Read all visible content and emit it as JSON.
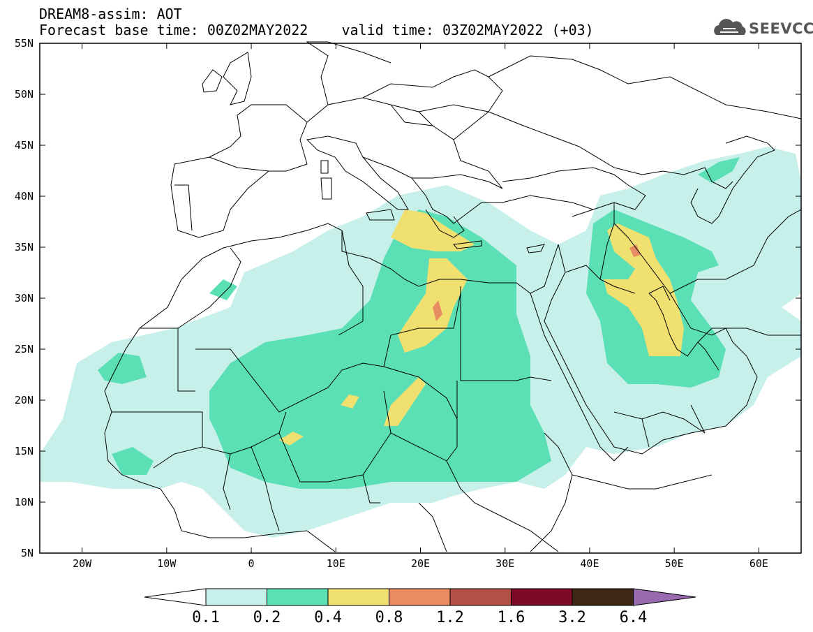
{
  "title": {
    "line1": "DREAM8-assim: AOT",
    "line2": "Forecast base time: 00Z02MAY2022    valid time: 03Z02MAY2022 (+03)"
  },
  "logo": {
    "text": "SEEVCCC",
    "icon": "cloud-icon"
  },
  "map": {
    "lon_range": [
      -25,
      65
    ],
    "lat_range": [
      5,
      55
    ],
    "lat_labels": [
      "55N",
      "50N",
      "45N",
      "40N",
      "35N",
      "30N",
      "25N",
      "20N",
      "15N",
      "10N",
      "5N"
    ],
    "lon_labels": [
      "20W",
      "10W",
      "0",
      "10E",
      "20E",
      "30E",
      "40E",
      "50E",
      "60E"
    ]
  },
  "colorbar": {
    "labels": [
      "0.1",
      "0.2",
      "0.4",
      "0.8",
      "1.2",
      "1.6",
      "3.2",
      "6.4"
    ],
    "colors": [
      "#c8f0eb",
      "#5ae0b4",
      "#f0e070",
      "#e88c64",
      "#b45046",
      "#7a0a28",
      "#3c2814",
      "#9a6ab0"
    ]
  }
}
